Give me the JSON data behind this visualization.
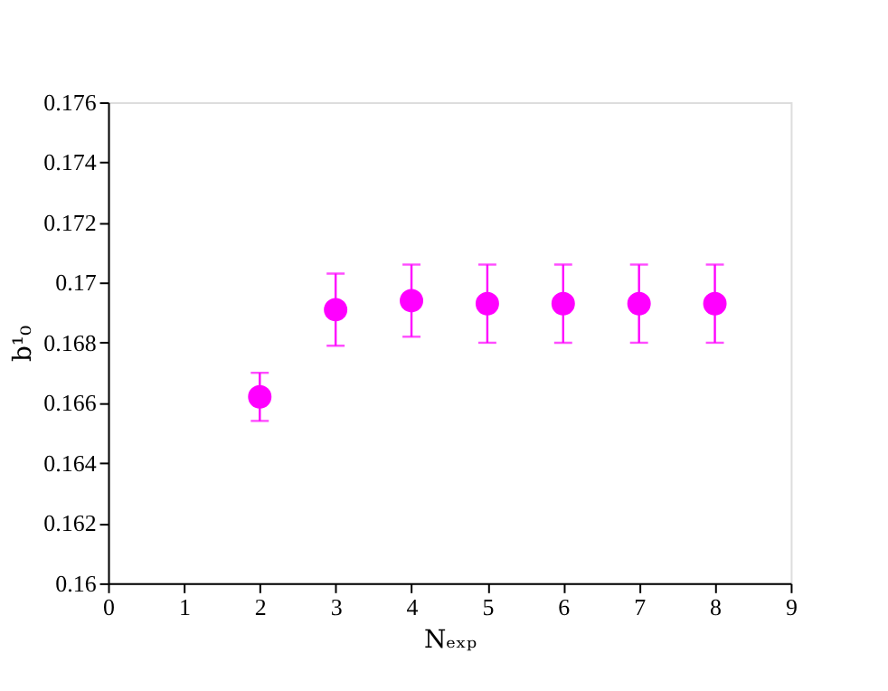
{
  "chart_data": {
    "type": "scatter",
    "xlabel": "Nₑₓₚ",
    "ylabel": "b¹₀",
    "x": [
      2,
      3,
      4,
      5,
      6,
      7,
      8
    ],
    "series": [
      {
        "color": "#ff00ff",
        "values": [
          0.1662,
          0.1691,
          0.1694,
          0.1693,
          0.1693,
          0.1693,
          0.1693
        ],
        "errors": [
          0.0008,
          0.0012,
          0.0012,
          0.0013,
          0.0013,
          0.0013,
          0.0013
        ]
      }
    ],
    "xlim": [
      0,
      9
    ],
    "xticks": [
      0,
      1,
      2,
      3,
      4,
      5,
      6,
      7,
      8,
      9
    ],
    "ylim": [
      0.16,
      0.176
    ],
    "yticks": [
      0.16,
      0.162,
      0.164,
      0.166,
      0.168,
      0.17,
      0.172,
      0.174,
      0.176
    ],
    "marker": "circle",
    "grid": false,
    "legend": false
  }
}
